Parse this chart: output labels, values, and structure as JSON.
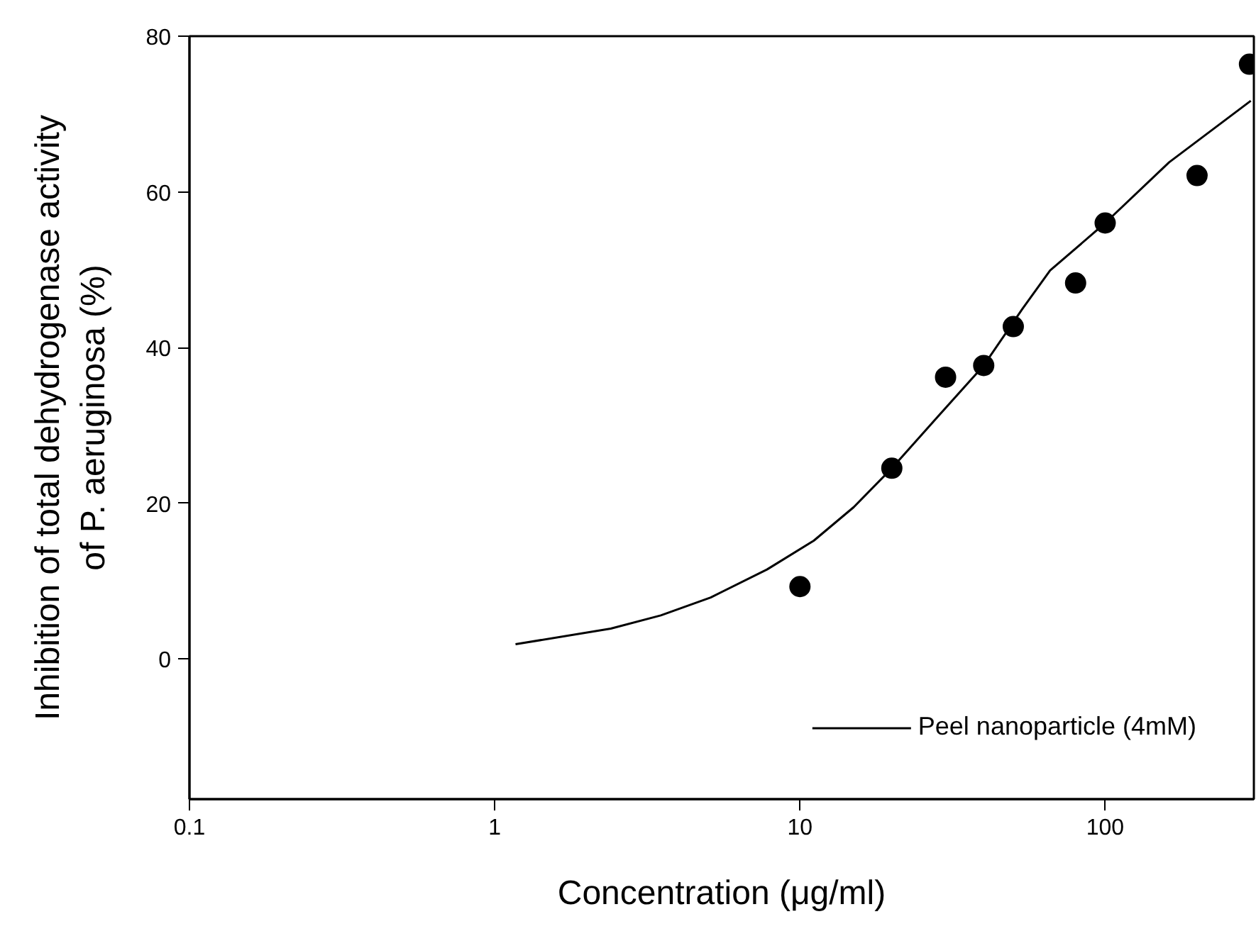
{
  "chart_data": {
    "type": "scatter",
    "xlabel": "Concentration (μg/ml)",
    "ylabel": "Inhibition of total dehydrogenase activity\nof P. aeruginosa (%)",
    "log": "x",
    "xlim": [
      0.1,
      307
    ],
    "ylim": [
      -18,
      80
    ],
    "xticks": [
      0.1,
      1,
      10,
      100
    ],
    "yticks": [
      0,
      20,
      40,
      60,
      80
    ],
    "grid": false,
    "legend": "bottom right",
    "series": [
      {
        "color": "#000000",
        "marker": "circle",
        "x": [
          10,
          20,
          30,
          40,
          50,
          80,
          100,
          200,
          297
        ],
        "values": [
          9.3,
          24.5,
          36.2,
          37.7,
          42.7,
          48.3,
          56.0,
          62.1,
          76.4
        ]
      },
      {
        "type": "line",
        "marker": "none",
        "name": "Peel nanoparticle (4mM)",
        "color": "#000000",
        "line_style": "solid",
        "x": [
          1.17,
          2.4,
          3.5,
          5.1,
          7.8,
          11.1,
          15,
          20,
          28.1,
          40,
          53.6,
          66,
          100,
          162,
          300
        ],
        "values": [
          1.9,
          3.9,
          5.6,
          7.9,
          11.5,
          15.2,
          19.5,
          24.5,
          31.0,
          37.7,
          45.0,
          49.9,
          56.0,
          63.8,
          71.7
        ]
      }
    ]
  }
}
